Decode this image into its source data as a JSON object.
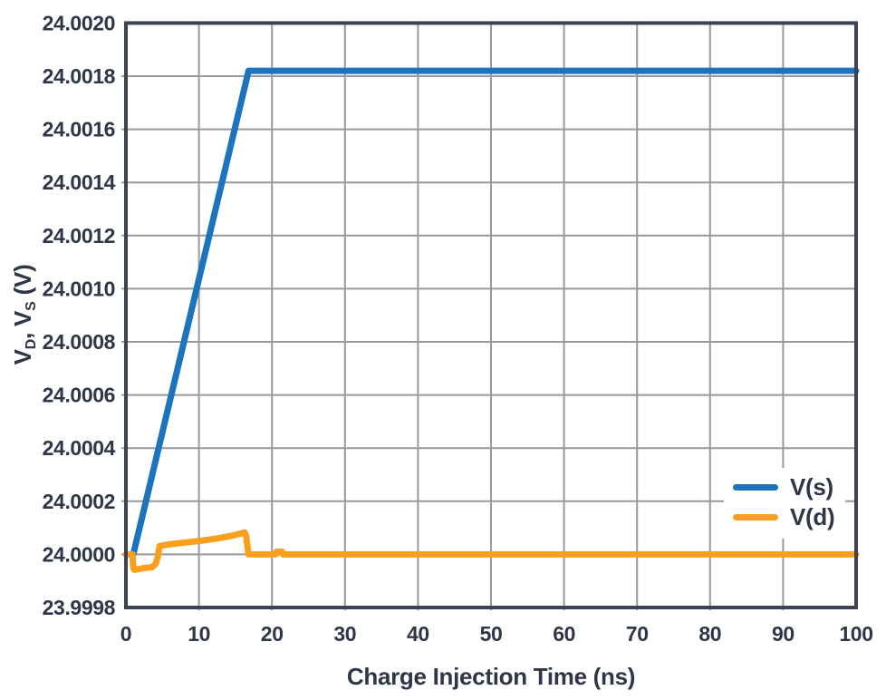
{
  "figure": {
    "background_color": "#ffffff",
    "text_color": "#2E3648",
    "frame_color": "#3C4454",
    "grid_color": "#97999E"
  },
  "chart_data": {
    "type": "line",
    "title": "",
    "xlabel": "Charge Injection Time (ns)",
    "ylabel": "VD, VS (V)",
    "ylabel_parts": {
      "p1": "V",
      "sub1": "D",
      "p2": ", V",
      "sub2": "S",
      "p3": " (V)"
    },
    "xlim": [
      0,
      100
    ],
    "ylim": [
      23.9998,
      24.002
    ],
    "grid": true,
    "legend_position": "inside-lower-right",
    "xticks": [
      {
        "v": 0,
        "label": "0"
      },
      {
        "v": 10,
        "label": "10"
      },
      {
        "v": 20,
        "label": "20"
      },
      {
        "v": 30,
        "label": "30"
      },
      {
        "v": 40,
        "label": "40"
      },
      {
        "v": 50,
        "label": "50"
      },
      {
        "v": 60,
        "label": "60"
      },
      {
        "v": 70,
        "label": "70"
      },
      {
        "v": 80,
        "label": "80"
      },
      {
        "v": 90,
        "label": "90"
      },
      {
        "v": 100,
        "label": "100"
      }
    ],
    "yticks": [
      {
        "v": 23.9998,
        "label": "23.9998"
      },
      {
        "v": 24.0,
        "label": "24.0000"
      },
      {
        "v": 24.0002,
        "label": "24.0002"
      },
      {
        "v": 24.0004,
        "label": "24.0004"
      },
      {
        "v": 24.0006,
        "label": "24.0006"
      },
      {
        "v": 24.0008,
        "label": "24.0008"
      },
      {
        "v": 24.001,
        "label": "24.0010"
      },
      {
        "v": 24.0012,
        "label": "24.0012"
      },
      {
        "v": 24.0014,
        "label": "24.0014"
      },
      {
        "v": 24.0016,
        "label": "24.0016"
      },
      {
        "v": 24.0018,
        "label": "24.0018"
      },
      {
        "v": 24.002,
        "label": "24.0020"
      }
    ],
    "series": [
      {
        "name": "V(s)",
        "color": "#1B74BD",
        "points": [
          [
            1.0,
            24.0
          ],
          [
            16.8,
            24.00182
          ],
          [
            100,
            24.00182
          ]
        ]
      },
      {
        "name": "V(d)",
        "color": "#F8A01E",
        "points": [
          [
            0,
            24.0
          ],
          [
            0.9,
            24.0
          ],
          [
            1.0,
            23.99995
          ],
          [
            1.15,
            23.999942
          ],
          [
            2.2,
            23.999947
          ],
          [
            3.6,
            23.999952
          ],
          [
            4.1,
            23.999965
          ],
          [
            4.35,
            23.99999
          ],
          [
            4.6,
            24.000031
          ],
          [
            5.5,
            24.000036
          ],
          [
            7.5,
            24.000043
          ],
          [
            10,
            24.00005
          ],
          [
            12.5,
            24.00006
          ],
          [
            14.5,
            24.00007
          ],
          [
            15.8,
            24.000079
          ],
          [
            16.25,
            24.000083
          ],
          [
            16.45,
            24.00007
          ],
          [
            16.65,
            24.00003
          ],
          [
            16.8,
            24.0
          ],
          [
            20.5,
            24.0
          ],
          [
            20.62,
            24.00001
          ],
          [
            21.4,
            24.00001
          ],
          [
            21.52,
            24.0
          ],
          [
            100,
            24.0
          ]
        ]
      }
    ]
  }
}
